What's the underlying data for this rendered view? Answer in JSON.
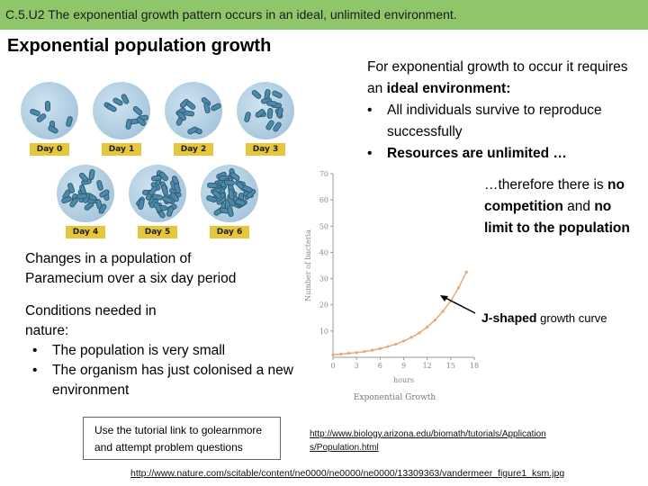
{
  "banner": {
    "text": "C.5.U2 The exponential growth pattern occurs in an ideal, unlimited environment."
  },
  "title": "Exponential population growth",
  "dishes": [
    {
      "label": "Day 0",
      "cells": 6
    },
    {
      "label": "Day 1",
      "cells": 9
    },
    {
      "label": "Day 2",
      "cells": 11
    },
    {
      "label": "Day 3",
      "cells": 14
    },
    {
      "label": "Day 4",
      "cells": 22
    },
    {
      "label": "Day 5",
      "cells": 30
    },
    {
      "label": "Day 6",
      "cells": 45
    }
  ],
  "left_text": {
    "changes": "Changes in a population of Paramecium over a six day period",
    "conditions_heading": "Conditions needed in nature:",
    "conditions": [
      "The population is very small",
      "The organism has just colonised a new environment"
    ]
  },
  "tutorial": "Use the tutorial link to golearnmore and attempt problem questions",
  "requirements": {
    "intro": "For exponential growth to occur it requires an",
    "intro_bold": "ideal environment:",
    "items": [
      {
        "text": "All individuals survive to reproduce successfully",
        "bold": false
      },
      {
        "text": "Resources are unlimited …",
        "bold": true
      }
    ]
  },
  "therefore": {
    "prefix": "…therefore there is",
    "bold1": "no competition",
    "mid": "and",
    "bold2": "no limit to the population"
  },
  "jcurve": {
    "bold": "J-shaped",
    "rest": "growth curve"
  },
  "links": {
    "link1": "http://www.biology.arizona.edu/biomath/tutorials/Applications/Population.html",
    "link2": "http://www.nature.com/scitable/content/ne0000/ne0000/ne0000/13309363/vandermeer_figure1_ksm.jpg"
  },
  "chart_data": {
    "type": "line",
    "title": "",
    "caption": "Exponential Growth",
    "xlabel": "hours",
    "ylabel": "Number of bacteria",
    "xlim": [
      0,
      18
    ],
    "ylim": [
      0,
      70
    ],
    "xticks": [
      0,
      3,
      6,
      9,
      12,
      15,
      18
    ],
    "yticks": [
      10,
      20,
      30,
      40,
      50,
      60,
      70
    ],
    "x": [
      0,
      1,
      2,
      3,
      4,
      5,
      6,
      7,
      8,
      9,
      10,
      11,
      12,
      13,
      14,
      15,
      16,
      17
    ],
    "y": [
      1,
      1.2,
      1.5,
      1.8,
      2.2,
      2.7,
      3.3,
      4.1,
      5.0,
      6.2,
      7.6,
      9.3,
      11.5,
      14.2,
      17.5,
      21.5,
      26.5,
      32.5
    ],
    "line_color": "#e8a97a"
  }
}
